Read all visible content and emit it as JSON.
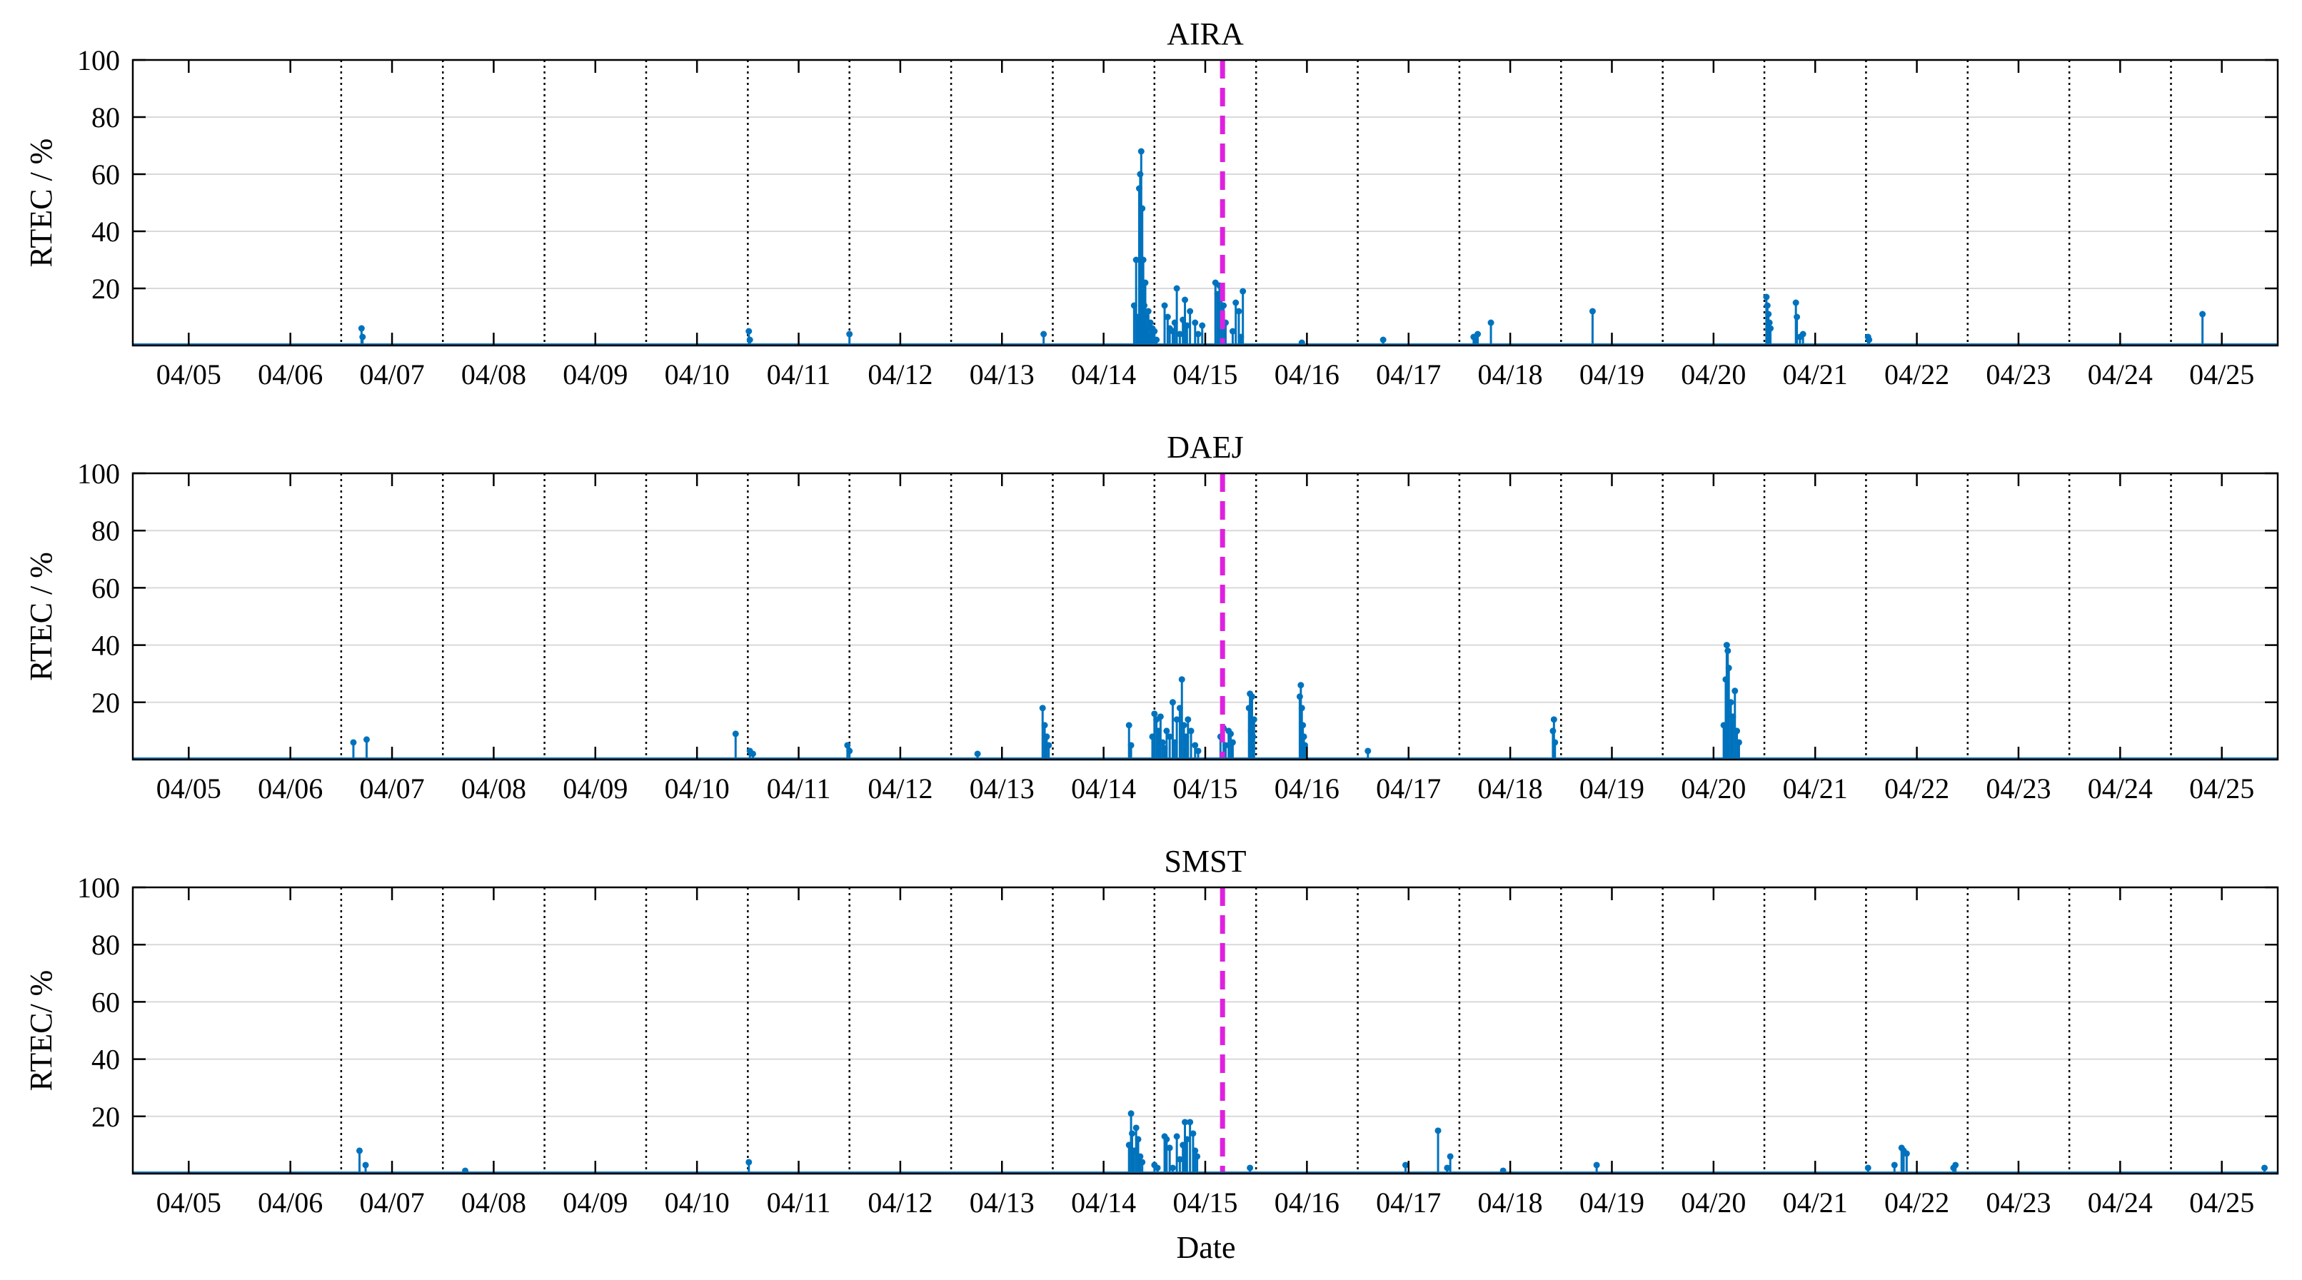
{
  "figure": {
    "xlabel": "Date",
    "colors": {
      "stem": "#0072BD",
      "event": "#E020E0",
      "grid": "#d9d9d9",
      "axis": "#000000"
    }
  },
  "chart_data": [
    {
      "type": "stem",
      "title": "AIRA",
      "ylabel": "RTEC / %",
      "ylim": [
        0,
        100
      ],
      "yticks": [
        20,
        40,
        60,
        80,
        100
      ],
      "xlim_days": [
        4.45,
        25.55
      ],
      "xticks": [
        "04/05",
        "04/06",
        "04/07",
        "04/08",
        "04/09",
        "04/10",
        "04/11",
        "04/12",
        "04/13",
        "04/14",
        "04/15",
        "04/16",
        "04/17",
        "04/18",
        "04/19",
        "04/20",
        "04/21",
        "04/22",
        "04/23",
        "04/24",
        "04/25"
      ],
      "day_boundaries": [
        6.5,
        7.5,
        8.5,
        9.5,
        10.5,
        11.5,
        12.5,
        13.5,
        14.5,
        15.5,
        16.5,
        17.5,
        18.5,
        19.5,
        20.5,
        21.5,
        22.5,
        23.5,
        24.5
      ],
      "event_x": 15.17,
      "x": [
        6.7,
        6.71,
        10.51,
        10.52,
        11.5,
        13.41,
        14.3,
        14.32,
        14.33,
        14.34,
        14.35,
        14.36,
        14.37,
        14.38,
        14.39,
        14.4,
        14.41,
        14.42,
        14.43,
        14.44,
        14.45,
        14.46,
        14.48,
        14.5,
        14.52,
        14.6,
        14.63,
        14.65,
        14.68,
        14.7,
        14.72,
        14.75,
        14.78,
        14.8,
        14.82,
        14.85,
        14.9,
        14.93,
        14.97,
        15.1,
        15.12,
        15.14,
        15.16,
        15.18,
        15.2,
        15.27,
        15.3,
        15.33,
        15.35,
        15.37,
        15.95,
        16.75,
        17.64,
        17.66,
        17.68,
        17.81,
        18.81,
        20.52,
        20.53,
        20.54,
        20.55,
        20.56,
        20.81,
        20.82,
        20.85,
        20.88,
        21.52,
        21.53,
        24.81
      ],
      "y": [
        6,
        3,
        5,
        2,
        4,
        4,
        14,
        30,
        10,
        5,
        55,
        60,
        68,
        48,
        30,
        14,
        22,
        10,
        6,
        12,
        3,
        8,
        6,
        5,
        2,
        14,
        10,
        6,
        5,
        8,
        20,
        4,
        9,
        16,
        7,
        12,
        8,
        4,
        7,
        22,
        18,
        21,
        20,
        14,
        8,
        5,
        15,
        12,
        3,
        19,
        1,
        2,
        3,
        2,
        4,
        8,
        12,
        17,
        14,
        11,
        8,
        6,
        15,
        10,
        3,
        4,
        3,
        2,
        11
      ]
    },
    {
      "type": "stem",
      "title": "DAEJ",
      "ylabel": "RTEC / %",
      "ylim": [
        0,
        100
      ],
      "yticks": [
        20,
        40,
        60,
        80,
        100
      ],
      "xlim_days": [
        4.45,
        25.55
      ],
      "xticks": [
        "04/05",
        "04/06",
        "04/07",
        "04/08",
        "04/09",
        "04/10",
        "04/11",
        "04/12",
        "04/13",
        "04/14",
        "04/15",
        "04/16",
        "04/17",
        "04/18",
        "04/19",
        "04/20",
        "04/21",
        "04/22",
        "04/23",
        "04/24",
        "04/25"
      ],
      "day_boundaries": [
        6.5,
        7.5,
        8.5,
        9.5,
        10.5,
        11.5,
        12.5,
        13.5,
        14.5,
        15.5,
        16.5,
        17.5,
        18.5,
        19.5,
        20.5,
        21.5,
        22.5,
        23.5,
        24.5
      ],
      "event_x": 15.17,
      "x": [
        6.62,
        6.75,
        10.38,
        10.52,
        10.55,
        11.48,
        11.5,
        12.76,
        13.4,
        13.42,
        13.44,
        13.46,
        14.25,
        14.27,
        14.48,
        14.5,
        14.52,
        14.54,
        14.56,
        14.58,
        14.6,
        14.62,
        14.65,
        14.68,
        14.7,
        14.72,
        14.75,
        14.77,
        14.79,
        14.81,
        14.83,
        14.86,
        14.9,
        14.93,
        15.15,
        15.18,
        15.2,
        15.23,
        15.25,
        15.27,
        15.43,
        15.44,
        15.45,
        15.46,
        15.47,
        15.48,
        15.93,
        15.94,
        15.95,
        15.96,
        15.97,
        15.98,
        16.6,
        18.42,
        18.43,
        18.44,
        20.1,
        20.12,
        20.13,
        20.14,
        20.15,
        20.17,
        20.19,
        20.21,
        20.23,
        20.25
      ],
      "y": [
        6,
        7,
        9,
        3,
        2,
        5,
        3,
        2,
        18,
        12,
        8,
        5,
        12,
        5,
        8,
        16,
        14,
        10,
        15,
        6,
        4,
        10,
        8,
        20,
        6,
        14,
        18,
        28,
        12,
        8,
        14,
        10,
        5,
        3,
        8,
        11,
        5,
        10,
        9,
        6,
        18,
        23,
        10,
        22,
        8,
        14,
        22,
        26,
        18,
        12,
        8,
        5,
        3,
        10,
        14,
        6,
        12,
        28,
        40,
        38,
        32,
        20,
        15,
        24,
        10,
        6
      ]
    },
    {
      "type": "stem",
      "title": "SMST",
      "ylabel": "RTEC/ %",
      "ylim": [
        0,
        100
      ],
      "yticks": [
        20,
        40,
        60,
        80,
        100
      ],
      "xlim_days": [
        4.45,
        25.55
      ],
      "xticks": [
        "04/05",
        "04/06",
        "04/07",
        "04/08",
        "04/09",
        "04/10",
        "04/11",
        "04/12",
        "04/13",
        "04/14",
        "04/15",
        "04/16",
        "04/17",
        "04/18",
        "04/19",
        "04/20",
        "04/21",
        "04/22",
        "04/23",
        "04/24",
        "04/25"
      ],
      "day_boundaries": [
        6.5,
        7.5,
        8.5,
        9.5,
        10.5,
        11.5,
        12.5,
        13.5,
        14.5,
        15.5,
        16.5,
        17.5,
        18.5,
        19.5,
        20.5,
        21.5,
        22.5,
        23.5,
        24.5
      ],
      "event_x": 15.17,
      "x": [
        6.68,
        6.74,
        7.72,
        10.51,
        14.25,
        14.27,
        14.28,
        14.3,
        14.32,
        14.34,
        14.36,
        14.38,
        14.5,
        14.53,
        14.6,
        14.62,
        14.65,
        14.68,
        14.72,
        14.75,
        14.78,
        14.8,
        14.82,
        14.85,
        14.88,
        14.9,
        14.92,
        15.44,
        16.97,
        17.29,
        17.38,
        17.41,
        17.93,
        18.85,
        21.52,
        21.78,
        21.85,
        21.87,
        21.9,
        22.36,
        22.38,
        25.42
      ],
      "y": [
        8,
        3,
        1,
        4,
        10,
        21,
        14,
        8,
        16,
        12,
        6,
        4,
        3,
        2,
        13,
        12,
        9,
        2,
        13,
        5,
        10,
        18,
        12,
        18,
        14,
        8,
        6,
        2,
        3,
        15,
        2,
        6,
        1,
        3,
        2,
        3,
        9,
        8,
        7,
        2,
        3,
        2
      ]
    }
  ]
}
